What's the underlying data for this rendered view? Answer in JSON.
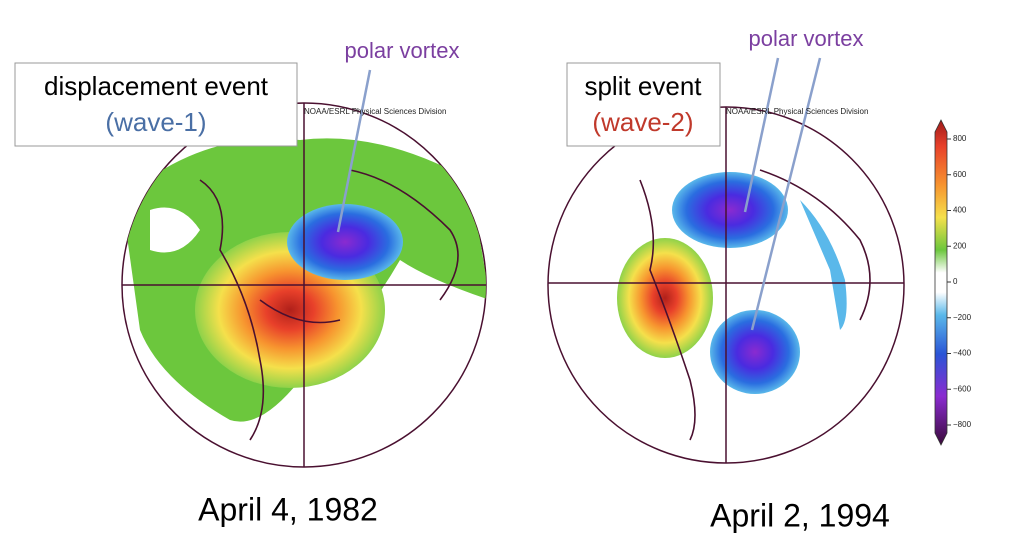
{
  "panels": [
    {
      "title": "displacement event",
      "subtitle": "(wave-1)",
      "annotation": "polar vortex",
      "credit": "NOAA/ESRL Physical Sciences Division",
      "date": "April 4, 1982"
    },
    {
      "title": "split event",
      "subtitle": "(wave-2)",
      "annotation": "polar vortex",
      "credit": "NOAA/ESRL Physical Sciences Division",
      "date": "April 2, 1994"
    }
  ],
  "colorbar": {
    "ticks": [
      800,
      600,
      400,
      200,
      0,
      {
        "value": -200,
        "label": "−200"
      },
      {
        "value": -400,
        "label": "−400"
      },
      {
        "value": -600,
        "label": "−600"
      },
      {
        "value": -800,
        "label": "−800"
      }
    ]
  }
}
